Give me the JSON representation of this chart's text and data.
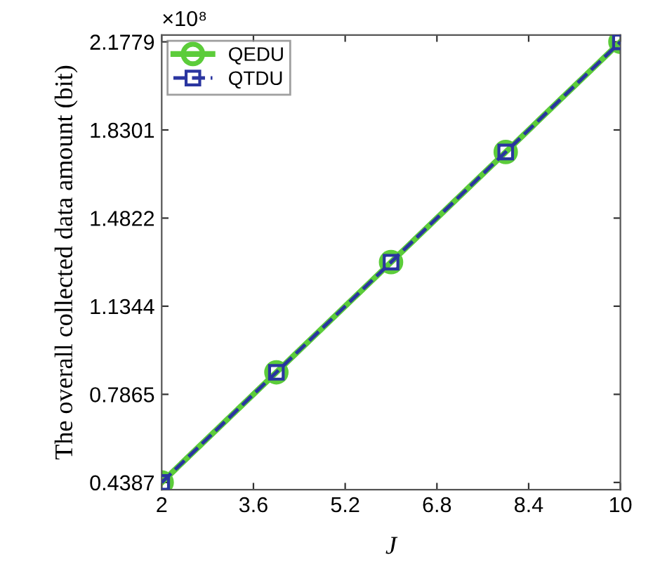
{
  "chart_data": {
    "type": "line",
    "xlabel": "J",
    "ylabel": "The overall collected data amount (bit)",
    "annotations": [
      "×10⁸"
    ],
    "x": [
      2,
      4,
      6,
      8,
      10
    ],
    "series": [
      {
        "name": "QEDU",
        "color": "#5ccc3a",
        "values": [
          0.4387,
          0.8735,
          1.3083,
          1.7431,
          2.1779
        ],
        "marker": "circle",
        "line_style": "solid"
      },
      {
        "name": "QTDU",
        "color": "#2a35a0",
        "values": [
          0.4387,
          0.8735,
          1.3083,
          1.7431,
          2.1779
        ],
        "marker": "square",
        "line_style": "dashed"
      }
    ],
    "xlim": [
      2,
      10
    ],
    "xticks": [
      2,
      3.6,
      5.2,
      6.8,
      8.4,
      10
    ],
    "ylim": [
      0.41,
      2.205
    ],
    "yticks": [
      0.4387,
      0.7865,
      1.1344,
      1.4822,
      1.8301,
      2.1779
    ],
    "grid": false,
    "legend": "top left"
  }
}
